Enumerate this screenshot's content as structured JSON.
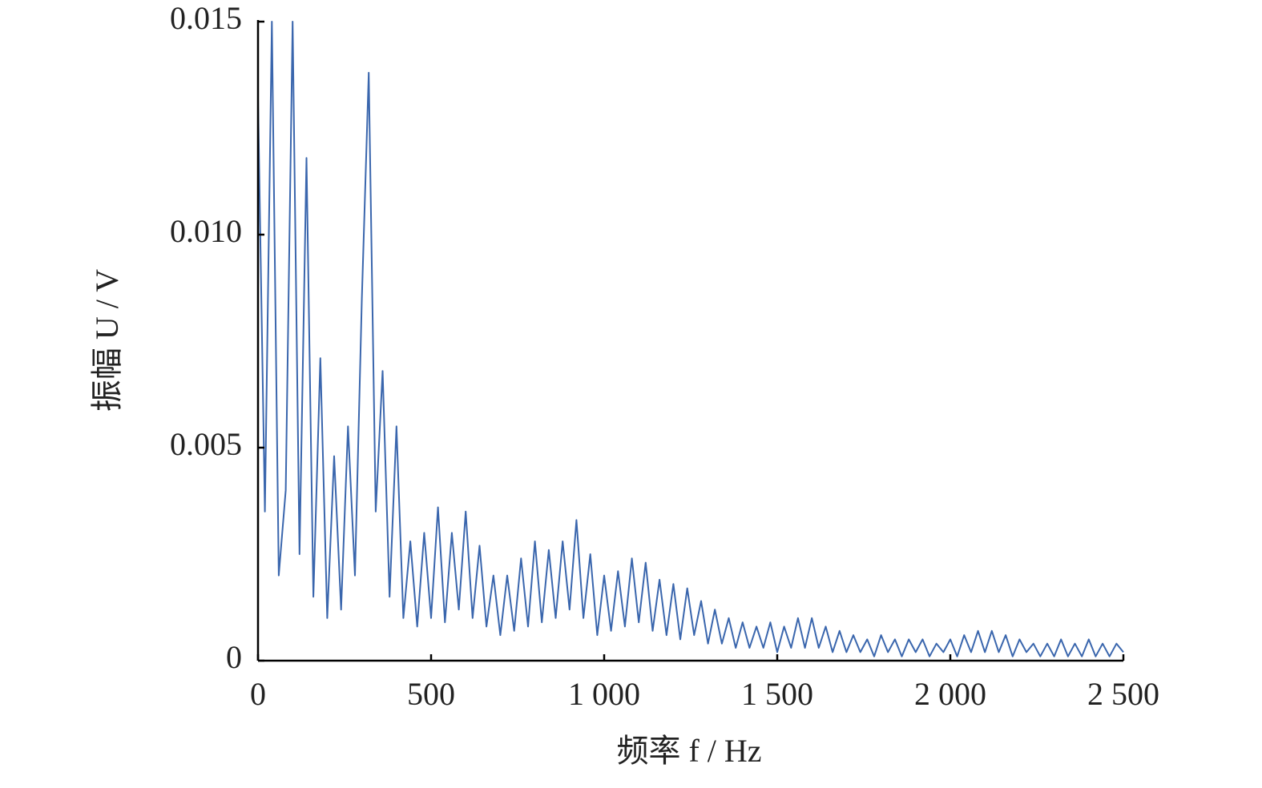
{
  "chart_data": {
    "type": "line",
    "xlabel": "频率 f / Hz",
    "ylabel": "振幅 U / V",
    "color": "#3a66ad",
    "xlim": [
      0,
      2500
    ],
    "ylim": [
      0,
      0.015
    ],
    "xticks": [
      0,
      500,
      {
        "value": 1000,
        "label": "1 000"
      },
      {
        "value": 1500,
        "label": "1 500"
      },
      {
        "value": 2000,
        "label": "2 000"
      },
      {
        "value": 2500,
        "label": "2 500"
      }
    ],
    "yticks": [
      0,
      0.005,
      {
        "value": 0.01,
        "label": "0.010"
      },
      0.015
    ],
    "x": [
      0,
      20,
      40,
      60,
      80,
      100,
      120,
      140,
      160,
      180,
      200,
      220,
      240,
      260,
      280,
      300,
      320,
      340,
      360,
      380,
      400,
      420,
      440,
      460,
      480,
      500,
      520,
      540,
      560,
      580,
      600,
      620,
      640,
      660,
      680,
      700,
      720,
      740,
      760,
      780,
      800,
      820,
      840,
      860,
      880,
      900,
      920,
      940,
      960,
      980,
      1000,
      1020,
      1040,
      1060,
      1080,
      1100,
      1120,
      1140,
      1160,
      1180,
      1200,
      1220,
      1240,
      1260,
      1280,
      1300,
      1320,
      1340,
      1360,
      1380,
      1400,
      1420,
      1440,
      1460,
      1480,
      1500,
      1520,
      1540,
      1560,
      1580,
      1600,
      1620,
      1640,
      1660,
      1680,
      1700,
      1720,
      1740,
      1760,
      1780,
      1800,
      1820,
      1840,
      1860,
      1880,
      1900,
      1920,
      1940,
      1960,
      1980,
      2000,
      2020,
      2040,
      2060,
      2080,
      2100,
      2120,
      2140,
      2160,
      2180,
      2200,
      2220,
      2240,
      2260,
      2280,
      2300,
      2320,
      2340,
      2360,
      2380,
      2400,
      2420,
      2440,
      2460,
      2480,
      2500
    ],
    "values": [
      0.0132,
      0.0035,
      0.015,
      0.002,
      0.004,
      0.015,
      0.0025,
      0.0118,
      0.0015,
      0.0071,
      0.001,
      0.0048,
      0.0012,
      0.0055,
      0.002,
      0.0085,
      0.0138,
      0.0035,
      0.0068,
      0.0015,
      0.0055,
      0.001,
      0.0028,
      0.0008,
      0.003,
      0.001,
      0.0036,
      0.0009,
      0.003,
      0.0012,
      0.0035,
      0.001,
      0.0027,
      0.0008,
      0.002,
      0.0006,
      0.002,
      0.0007,
      0.0024,
      0.0008,
      0.0028,
      0.0009,
      0.0026,
      0.001,
      0.0028,
      0.0012,
      0.0033,
      0.001,
      0.0025,
      0.0006,
      0.002,
      0.0007,
      0.0021,
      0.0008,
      0.0024,
      0.0009,
      0.0023,
      0.0007,
      0.0019,
      0.0006,
      0.0018,
      0.0005,
      0.0017,
      0.0006,
      0.0014,
      0.0004,
      0.0012,
      0.0004,
      0.001,
      0.0003,
      0.0009,
      0.0003,
      0.0008,
      0.0003,
      0.0009,
      0.0002,
      0.0008,
      0.0003,
      0.001,
      0.0003,
      0.001,
      0.0003,
      0.0008,
      0.0002,
      0.0007,
      0.0002,
      0.0006,
      0.0002,
      0.0005,
      0.0001,
      0.0006,
      0.0002,
      0.0005,
      0.0001,
      0.0005,
      0.0002,
      0.0005,
      0.0001,
      0.0004,
      0.0002,
      0.0005,
      0.0001,
      0.0006,
      0.0002,
      0.0007,
      0.0002,
      0.0007,
      0.0002,
      0.0006,
      0.0001,
      0.0005,
      0.0002,
      0.0004,
      0.0001,
      0.0004,
      0.0001,
      0.0005,
      0.0001,
      0.0004,
      0.0001,
      0.0005,
      0.0001,
      0.0004,
      0.0001,
      0.0004,
      0.0002
    ]
  }
}
